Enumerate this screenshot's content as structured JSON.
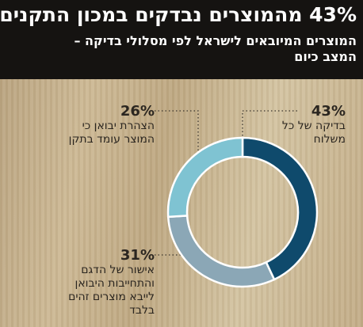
{
  "chart_data": {
    "type": "pie",
    "donut": true,
    "title": "43% מהמוצרים נבדקים במכון התקנים",
    "subtitle": "המוצרים המיובאים לישראל לפי מסלולי בדיקה – המצב כיום",
    "categories": [
      "בדיקה של כל משלוח",
      "אישור של הדגם והתחייבות היבואן לייבא מוצרים זהים בלבד",
      "הצהרת יבואן כי המוצר עומד בתקן"
    ],
    "values": [
      43,
      31,
      26
    ],
    "value_labels": [
      "43%",
      "31%",
      "26%"
    ],
    "colors": [
      "#0f4a6c",
      "#8ba7b6",
      "#7fc3d2"
    ]
  }
}
